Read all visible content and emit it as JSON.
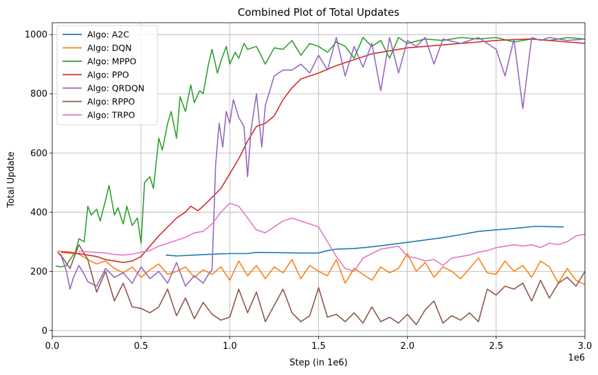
{
  "chart_data": {
    "type": "line",
    "title": "Combined Plot of Total Updates",
    "xlabel": "Step (in 1e6)",
    "ylabel": "Total Update",
    "x_offset_text": "1e6",
    "xlim": [
      0,
      3.0
    ],
    "ylim": [
      -20,
      1040
    ],
    "xticks": [
      0.0,
      0.5,
      1.0,
      1.5,
      2.0,
      2.5,
      3.0
    ],
    "xtick_labels": [
      "0.0",
      "0.5",
      "1.0",
      "1.5",
      "2.0",
      "2.5",
      "3.0"
    ],
    "yticks": [
      0,
      200,
      400,
      600,
      800,
      1000
    ],
    "ytick_labels": [
      "0",
      "200",
      "400",
      "600",
      "800",
      "1000"
    ],
    "grid": true,
    "legend_position": "top-left",
    "series": [
      {
        "name": "Algo: A2C",
        "color": "#1f77b4",
        "x": [
          0.64,
          0.7,
          0.8,
          0.9,
          1.0,
          1.1,
          1.15,
          1.3,
          1.4,
          1.5,
          1.55,
          1.6,
          1.7,
          1.8,
          1.9,
          2.0,
          2.1,
          2.2,
          2.3,
          2.4,
          2.5,
          2.6,
          2.72,
          2.8,
          2.88
        ],
        "y": [
          255,
          252,
          255,
          258,
          260,
          260,
          264,
          263,
          262,
          262,
          270,
          275,
          277,
          283,
          290,
          298,
          306,
          314,
          324,
          335,
          340,
          345,
          352,
          351,
          350
        ]
      },
      {
        "name": "Algo: DQN",
        "color": "#ff7f0e",
        "x": [
          0.03,
          0.1,
          0.15,
          0.2,
          0.25,
          0.3,
          0.35,
          0.4,
          0.45,
          0.5,
          0.55,
          0.6,
          0.65,
          0.7,
          0.75,
          0.8,
          0.85,
          0.9,
          0.95,
          1.0,
          1.05,
          1.1,
          1.15,
          1.2,
          1.25,
          1.3,
          1.35,
          1.4,
          1.45,
          1.5,
          1.55,
          1.6,
          1.65,
          1.7,
          1.75,
          1.8,
          1.85,
          1.9,
          1.95,
          2.0,
          2.05,
          2.1,
          2.15,
          2.2,
          2.25,
          2.3,
          2.35,
          2.4,
          2.45,
          2.5,
          2.55,
          2.6,
          2.65,
          2.7,
          2.75,
          2.8,
          2.85,
          2.9,
          2.95,
          3.0
        ],
        "y": [
          268,
          266,
          258,
          240,
          225,
          235,
          210,
          195,
          215,
          180,
          205,
          225,
          190,
          200,
          215,
          180,
          205,
          190,
          215,
          170,
          235,
          185,
          220,
          175,
          215,
          195,
          240,
          175,
          220,
          200,
          185,
          240,
          160,
          210,
          190,
          170,
          215,
          195,
          210,
          260,
          200,
          230,
          180,
          215,
          200,
          175,
          210,
          245,
          195,
          190,
          235,
          200,
          220,
          180,
          235,
          215,
          160,
          210,
          170,
          155
        ]
      },
      {
        "name": "Algo: MPPO",
        "color": "#2ca02c",
        "x": [
          0.02,
          0.05,
          0.08,
          0.1,
          0.13,
          0.15,
          0.18,
          0.2,
          0.22,
          0.25,
          0.27,
          0.3,
          0.32,
          0.35,
          0.37,
          0.4,
          0.42,
          0.45,
          0.48,
          0.5,
          0.52,
          0.55,
          0.57,
          0.6,
          0.62,
          0.65,
          0.67,
          0.7,
          0.72,
          0.75,
          0.78,
          0.8,
          0.83,
          0.85,
          0.88,
          0.9,
          0.93,
          0.95,
          0.98,
          1.0,
          1.03,
          1.05,
          1.08,
          1.1,
          1.15,
          1.2,
          1.25,
          1.3,
          1.35,
          1.4,
          1.45,
          1.5,
          1.55,
          1.6,
          1.65,
          1.7,
          1.75,
          1.8,
          1.85,
          1.9,
          1.95,
          2.0,
          2.1,
          2.2,
          2.3,
          2.4,
          2.5,
          2.6,
          2.7,
          2.8,
          2.9,
          3.0
        ],
        "y": [
          218,
          215,
          220,
          240,
          265,
          310,
          300,
          420,
          390,
          410,
          370,
          440,
          490,
          390,
          415,
          360,
          420,
          355,
          380,
          295,
          500,
          520,
          480,
          650,
          610,
          700,
          740,
          650,
          790,
          740,
          830,
          770,
          810,
          800,
          900,
          950,
          870,
          910,
          960,
          900,
          940,
          920,
          970,
          950,
          960,
          900,
          955,
          950,
          980,
          930,
          970,
          960,
          940,
          975,
          960,
          920,
          990,
          960,
          980,
          920,
          990,
          970,
          985,
          980,
          990,
          985,
          990,
          975,
          985,
          980,
          990,
          985
        ]
      },
      {
        "name": "Algo: PPO",
        "color": "#d62728",
        "x": [
          0.05,
          0.1,
          0.15,
          0.2,
          0.25,
          0.3,
          0.35,
          0.4,
          0.45,
          0.5,
          0.55,
          0.6,
          0.65,
          0.7,
          0.75,
          0.78,
          0.82,
          0.85,
          0.9,
          0.95,
          1.0,
          1.05,
          1.1,
          1.15,
          1.2,
          1.25,
          1.3,
          1.35,
          1.4,
          1.5,
          1.6,
          1.7,
          1.8,
          1.9,
          2.0,
          2.1,
          2.2,
          2.3,
          2.4,
          2.5,
          2.6,
          2.7,
          2.8,
          2.9,
          3.0
        ],
        "y": [
          265,
          262,
          260,
          255,
          250,
          240,
          235,
          230,
          235,
          250,
          285,
          320,
          350,
          380,
          400,
          420,
          405,
          420,
          450,
          480,
          530,
          580,
          640,
          690,
          700,
          725,
          780,
          820,
          850,
          870,
          895,
          915,
          935,
          945,
          955,
          960,
          965,
          970,
          975,
          980,
          983,
          985,
          980,
          975,
          970
        ]
      },
      {
        "name": "Algo: QRDQN",
        "color": "#9467bd",
        "x": [
          0.03,
          0.05,
          0.08,
          0.1,
          0.12,
          0.15,
          0.18,
          0.2,
          0.25,
          0.3,
          0.35,
          0.4,
          0.45,
          0.5,
          0.55,
          0.6,
          0.65,
          0.7,
          0.75,
          0.8,
          0.85,
          0.88,
          0.9,
          0.92,
          0.94,
          0.96,
          0.98,
          1.0,
          1.02,
          1.05,
          1.08,
          1.1,
          1.12,
          1.15,
          1.18,
          1.2,
          1.25,
          1.3,
          1.35,
          1.4,
          1.45,
          1.5,
          1.55,
          1.6,
          1.65,
          1.7,
          1.75,
          1.8,
          1.85,
          1.9,
          1.95,
          2.0,
          2.05,
          2.1,
          2.15,
          2.2,
          2.3,
          2.4,
          2.5,
          2.55,
          2.6,
          2.65,
          2.7,
          2.75,
          2.8,
          2.9,
          3.0
        ],
        "y": [
          265,
          255,
          200,
          140,
          180,
          220,
          190,
          165,
          150,
          210,
          180,
          195,
          160,
          215,
          175,
          200,
          160,
          230,
          150,
          185,
          160,
          190,
          205,
          560,
          700,
          620,
          740,
          700,
          780,
          720,
          690,
          520,
          680,
          800,
          620,
          760,
          860,
          880,
          880,
          900,
          870,
          930,
          880,
          990,
          860,
          960,
          890,
          970,
          810,
          990,
          870,
          980,
          960,
          990,
          900,
          985,
          970,
          990,
          950,
          860,
          985,
          750,
          990,
          980,
          990,
          980,
          985
        ]
      },
      {
        "name": "Algo: RPPO",
        "color": "#8c564b",
        "x": [
          0.03,
          0.06,
          0.1,
          0.15,
          0.2,
          0.25,
          0.3,
          0.35,
          0.4,
          0.45,
          0.5,
          0.55,
          0.6,
          0.65,
          0.7,
          0.75,
          0.8,
          0.85,
          0.9,
          0.95,
          1.0,
          1.05,
          1.1,
          1.15,
          1.2,
          1.25,
          1.3,
          1.35,
          1.4,
          1.45,
          1.5,
          1.55,
          1.6,
          1.65,
          1.7,
          1.75,
          1.8,
          1.85,
          1.9,
          1.95,
          2.0,
          2.05,
          2.1,
          2.15,
          2.2,
          2.25,
          2.3,
          2.35,
          2.4,
          2.45,
          2.5,
          2.55,
          2.6,
          2.65,
          2.7,
          2.75,
          2.8,
          2.85,
          2.9,
          2.95,
          3.0
        ],
        "y": [
          265,
          245,
          210,
          290,
          240,
          130,
          200,
          100,
          160,
          80,
          75,
          60,
          80,
          140,
          50,
          110,
          40,
          95,
          55,
          35,
          45,
          140,
          60,
          130,
          30,
          85,
          140,
          60,
          30,
          50,
          145,
          45,
          55,
          30,
          60,
          25,
          80,
          30,
          45,
          25,
          55,
          20,
          70,
          100,
          25,
          50,
          35,
          60,
          30,
          140,
          120,
          150,
          140,
          160,
          100,
          170,
          110,
          160,
          180,
          150,
          200
        ]
      },
      {
        "name": "Algo: TRPO",
        "color": "#e377c2",
        "x": [
          0.15,
          0.2,
          0.25,
          0.3,
          0.35,
          0.4,
          0.45,
          0.5,
          0.55,
          0.6,
          0.65,
          0.7,
          0.75,
          0.8,
          0.85,
          0.9,
          0.95,
          1.0,
          1.05,
          1.1,
          1.15,
          1.2,
          1.25,
          1.3,
          1.35,
          1.4,
          1.45,
          1.5,
          1.55,
          1.6,
          1.65,
          1.7,
          1.75,
          1.8,
          1.85,
          1.9,
          1.95,
          2.0,
          2.05,
          2.1,
          2.15,
          2.2,
          2.25,
          2.3,
          2.35,
          2.4,
          2.45,
          2.5,
          2.55,
          2.6,
          2.65,
          2.7,
          2.75,
          2.8,
          2.85,
          2.9,
          2.95,
          3.0
        ],
        "y": [
          268,
          266,
          264,
          262,
          257,
          255,
          258,
          265,
          270,
          285,
          295,
          305,
          315,
          330,
          335,
          360,
          400,
          430,
          420,
          380,
          340,
          330,
          350,
          370,
          380,
          370,
          360,
          350,
          300,
          250,
          210,
          200,
          245,
          260,
          275,
          280,
          285,
          250,
          245,
          235,
          240,
          220,
          245,
          250,
          255,
          265,
          270,
          280,
          285,
          290,
          285,
          290,
          280,
          295,
          290,
          300,
          320,
          325
        ]
      }
    ]
  }
}
